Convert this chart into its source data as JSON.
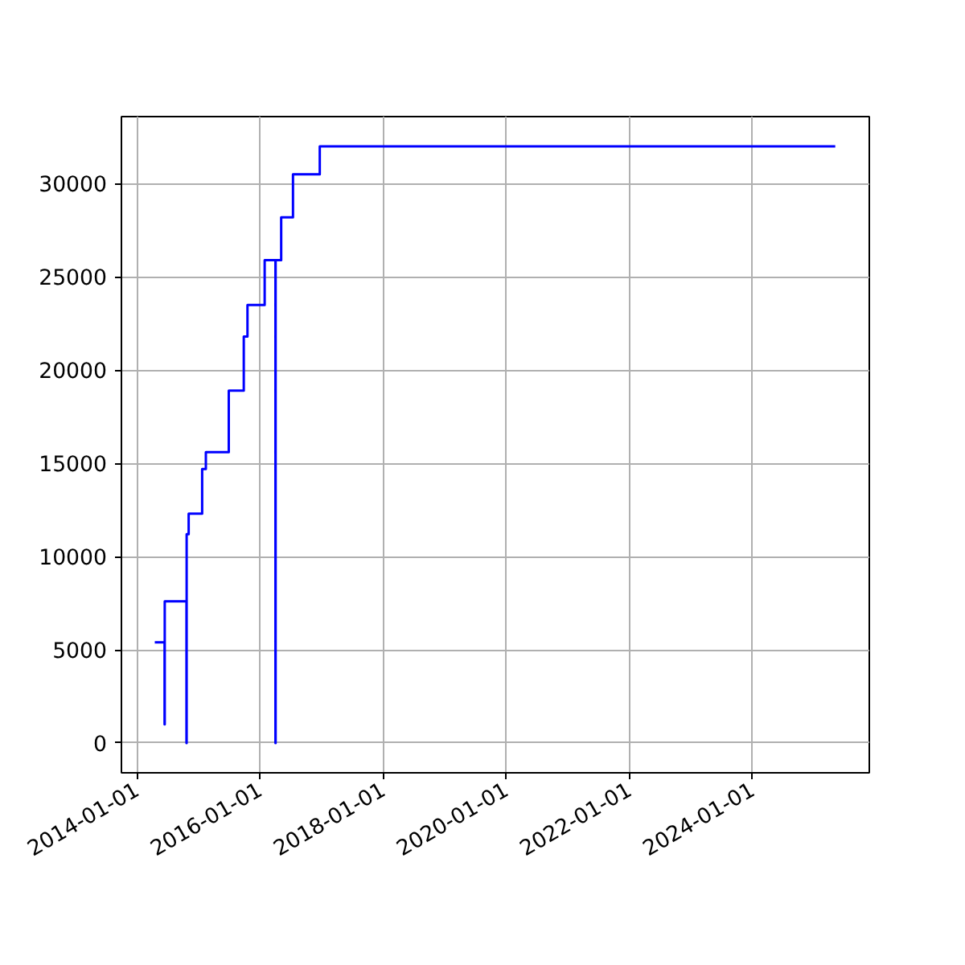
{
  "chart_data": {
    "type": "step",
    "x": [
      "2014-04-18",
      "2014-06-15",
      "2014-06-16",
      "2014-10-23",
      "2014-10-24",
      "2014-11-05",
      "2015-01-24",
      "2015-02-15",
      "2015-07-01",
      "2015-09-28",
      "2015-10-20",
      "2016-01-30",
      "2016-04-03",
      "2016-04-04",
      "2016-05-07",
      "2016-07-16",
      "2016-12-22",
      "2025-05-08"
    ],
    "series": [
      {
        "color": "#0000ff",
        "values": [
          5400,
          1000,
          7600,
          0,
          11200,
          12300,
          14700,
          15600,
          18900,
          21800,
          23500,
          25900,
          0,
          25900,
          28200,
          30500,
          32000,
          32000
        ]
      }
    ],
    "xlim": [
      "2013-10-02",
      "2025-11-26"
    ],
    "xticks": [
      {
        "value": "2014-01-01",
        "label": "2014-01-01"
      },
      {
        "value": "2016-01-01",
        "label": "2016-01-01"
      },
      {
        "value": "2018-01-01",
        "label": "2018-01-01"
      },
      {
        "value": "2020-01-01",
        "label": "2020-01-01"
      },
      {
        "value": "2022-01-01",
        "label": "2022-01-01"
      },
      {
        "value": "2024-01-01",
        "label": "2024-01-01"
      }
    ],
    "ylim": [
      -1600,
      33600
    ],
    "yticks": [
      0,
      5000,
      10000,
      15000,
      20000,
      25000,
      30000
    ],
    "grid": true,
    "marker": "none",
    "line_style": "solid"
  }
}
